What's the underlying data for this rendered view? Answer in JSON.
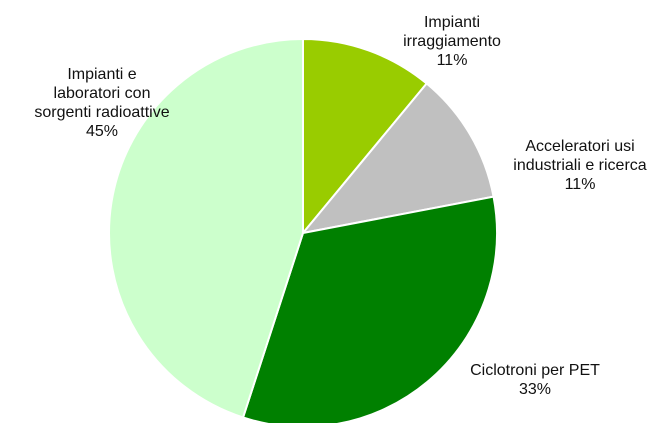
{
  "chart_data": {
    "type": "pie",
    "title": "",
    "slices": [
      {
        "label_lines": [
          "Impianti",
          "irraggiamento"
        ],
        "percent_label": "11%",
        "value": 11,
        "color": "#99cc00"
      },
      {
        "label_lines": [
          "Acceleratori usi",
          "industriali e ricerca"
        ],
        "percent_label": "11%",
        "value": 11,
        "color": "#c0c0c0"
      },
      {
        "label_lines": [
          "Ciclotroni per PET"
        ],
        "percent_label": "33%",
        "value": 33,
        "color": "#008000"
      },
      {
        "label_lines": [
          "Impianti e",
          "laboratori con",
          "sorgenti radioattive"
        ],
        "percent_label": "45%",
        "value": 45,
        "color": "#ccffcc"
      }
    ],
    "start_angle": "12 o'clock",
    "direction": "clockwise",
    "legend": "none"
  }
}
